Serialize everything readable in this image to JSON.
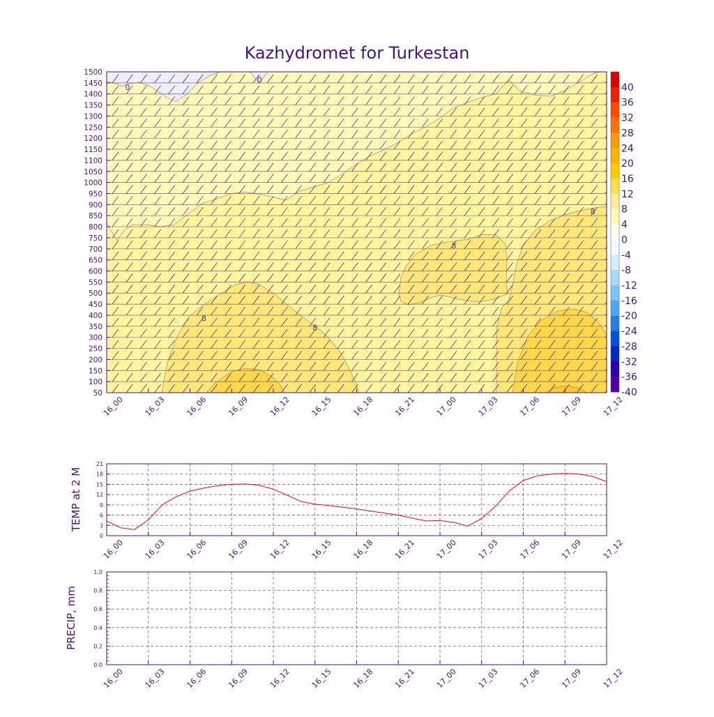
{
  "title": "Kazhydromet for Turkestan",
  "colors": {
    "frame": "#4b0f7a",
    "temp_line": "#ff0000",
    "grid": "#7a5aa8",
    "barb": "#4b0f7a"
  },
  "chart_data": [
    {
      "type": "heatmap",
      "title": "Kazhydromet for Turkestan",
      "x_ticks": [
        "16_00",
        "16_03",
        "16_06",
        "16_09",
        "16_12",
        "16_15",
        "16_18",
        "16_21",
        "17_00",
        "17_03",
        "17_06",
        "17_09",
        "17_12"
      ],
      "y_ticks": [
        50,
        100,
        150,
        200,
        250,
        300,
        350,
        400,
        450,
        500,
        550,
        600,
        650,
        700,
        750,
        800,
        850,
        900,
        950,
        1000,
        1050,
        1100,
        1150,
        1200,
        1250,
        1300,
        1350,
        1400,
        1450,
        1500
      ],
      "ylim": [
        50,
        1500
      ],
      "colorbar_labels": [
        40,
        36,
        32,
        28,
        24,
        20,
        16,
        12,
        8,
        4,
        0,
        -4,
        -8,
        -12,
        -16,
        -20,
        -24,
        -28,
        -32,
        -36,
        -40
      ],
      "colorbar_colors": [
        "#dd0000",
        "#ee2200",
        "#ff4a00",
        "#ff7000",
        "#ff9a00",
        "#ffb400",
        "#ffcc00",
        "#ffe04a",
        "#ffee99",
        "#fffab8",
        "#fffff0",
        "#f2f7ff",
        "#d6ecff",
        "#a9d8f9",
        "#7cc4f4",
        "#4fa8ee",
        "#1e7fe6",
        "#0050e0",
        "#0028c8",
        "#2a00b0",
        "#5500a0"
      ],
      "contour_labels": [
        {
          "text": "0",
          "x": "16_01.5",
          "y": 1430
        },
        {
          "text": "0",
          "x": "16_11",
          "y": 1465
        },
        {
          "text": "8",
          "x": "16_07",
          "y": 385
        },
        {
          "text": "8",
          "x": "16_15",
          "y": 345
        },
        {
          "text": "8",
          "x": "17_01",
          "y": 715
        },
        {
          "text": "8",
          "x": "17_11",
          "y": 870
        }
      ],
      "wind_barbs": "shown"
    },
    {
      "type": "line",
      "ylabel": "TEMP at 2 M",
      "ylim": [
        0,
        21
      ],
      "y_ticks": [
        0,
        3,
        6,
        9,
        12,
        15,
        18,
        21
      ],
      "x_ticks": [
        "16_00",
        "16_03",
        "16_06",
        "16_09",
        "16_12",
        "16_15",
        "16_18",
        "16_21",
        "17_00",
        "17_03",
        "17_06",
        "17_09",
        "17_12"
      ],
      "x": [
        0,
        1,
        2,
        3,
        4,
        5,
        6,
        7,
        8,
        9,
        10,
        11,
        12,
        13,
        14,
        15,
        16,
        17,
        18,
        19,
        20,
        21,
        22,
        23,
        24,
        25,
        26,
        27,
        28,
        29,
        30,
        31,
        32,
        33,
        34,
        35,
        36
      ],
      "series": [
        {
          "values": [
            4.3,
            2.3,
            1.8,
            4.6,
            9.0,
            11.4,
            13.0,
            13.9,
            14.6,
            15.0,
            15.1,
            14.7,
            13.6,
            11.8,
            10.0,
            9.2,
            8.8,
            8.3,
            7.8,
            7.2,
            6.6,
            6.0,
            5.1,
            4.3,
            4.4,
            3.9,
            2.8,
            5.0,
            8.6,
            13.1,
            16.1,
            17.5,
            18.0,
            18.2,
            18.0,
            17.3,
            15.8
          ]
        }
      ],
      "grid": true
    },
    {
      "type": "line",
      "ylabel": "PRECIP, mm",
      "ylim": [
        0.0,
        1.0
      ],
      "y_ticks": [
        "0.0",
        "0.2",
        "0.4",
        "0.6",
        "0.8",
        "1.0"
      ],
      "x_ticks": [
        "16_00",
        "16_03",
        "16_06",
        "16_09",
        "16_12",
        "16_15",
        "16_18",
        "16_21",
        "17_00",
        "17_03",
        "17_06",
        "17_09",
        "17_12"
      ],
      "series": [],
      "grid": true
    }
  ]
}
